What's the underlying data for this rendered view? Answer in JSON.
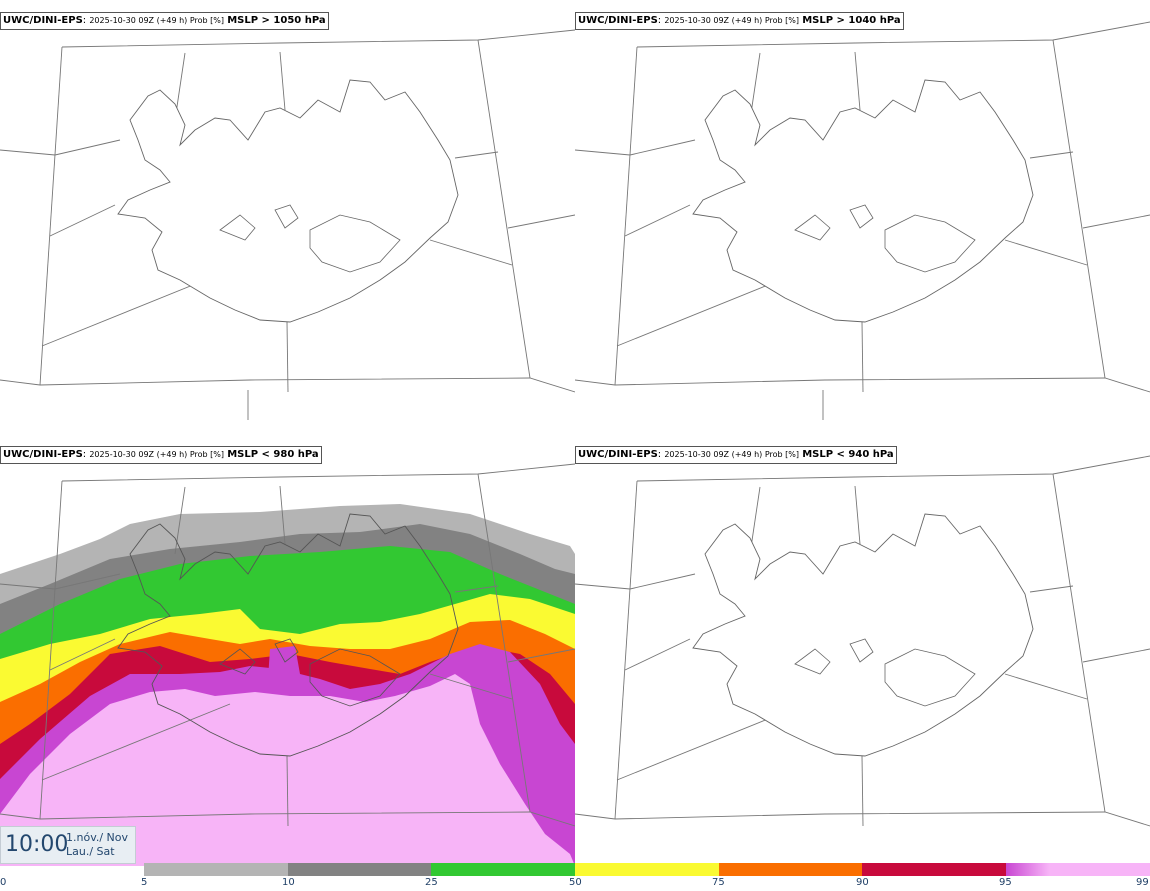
{
  "panels": [
    {
      "source": "UWC/DINI-EPS",
      "run": "2025-10-30 09Z (+49 h) Prob [%]",
      "threshold": "MSLP > 1050 hPa"
    },
    {
      "source": "UWC/DINI-EPS",
      "run": "2025-10-30 09Z (+49 h) Prob [%]",
      "threshold": "MSLP > 1040 hPa"
    },
    {
      "source": "UWC/DINI-EPS",
      "run": "2025-10-30 09Z (+49 h) Prob [%]",
      "threshold": "MSLP < 980 hPa"
    },
    {
      "source": "UWC/DINI-EPS",
      "run": "2025-10-30 09Z (+49 h) Prob [%]",
      "threshold": "MSLP < 940 hPa"
    }
  ],
  "valid_time": {
    "time": "10:00",
    "date": "1.nóv./ Nov",
    "weekday": "Lau./ Sat"
  },
  "colorbar": {
    "labels": [
      "0",
      "5",
      "10",
      "25",
      "50",
      "75",
      "90",
      "95",
      "99"
    ],
    "colors": [
      "#b4b4b4",
      "#828282",
      "#32c832",
      "#fafa32",
      "#fa6e00",
      "#c80a3c",
      "#c846d2",
      "#f7b4f7"
    ]
  },
  "fill_colors": {
    "lightgray": "#b4b4b4",
    "darkgray": "#828282",
    "green": "#32c832",
    "yellow": "#fafa32",
    "orange": "#fa6e00",
    "red": "#c80a3c",
    "purple": "#c846d2",
    "pink": "#f7b4f7"
  }
}
